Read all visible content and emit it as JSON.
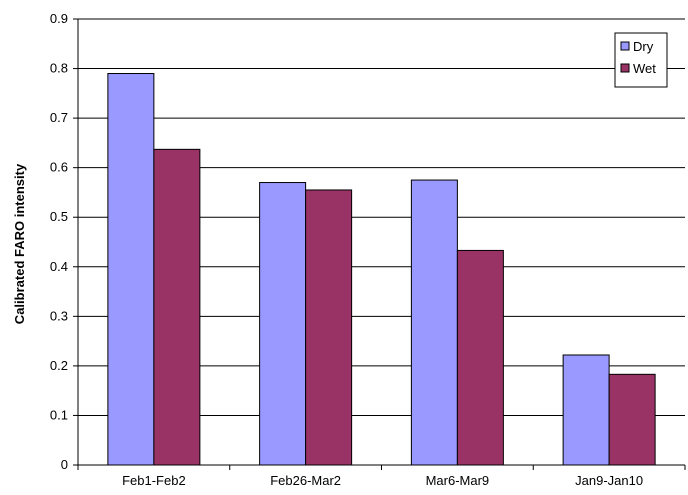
{
  "chart_data": {
    "type": "bar",
    "title": "",
    "xlabel": "",
    "ylabel": "Calibrated FARO intensity",
    "categories": [
      "Feb1-Feb2",
      "Feb26-Mar2",
      "Mar6-Mar9",
      "Jan9-Jan10"
    ],
    "series": [
      {
        "name": "Dry",
        "color": "#9999ff",
        "values": [
          0.79,
          0.57,
          0.575,
          0.222
        ]
      },
      {
        "name": "Wet",
        "color": "#993366",
        "values": [
          0.637,
          0.555,
          0.433,
          0.183
        ]
      }
    ],
    "ylim": [
      0,
      0.9
    ],
    "yticks": [
      "0",
      "0.1",
      "0.2",
      "0.3",
      "0.4",
      "0.5",
      "0.6",
      "0.7",
      "0.8",
      "0.9"
    ],
    "grid": true,
    "legend_position": "top-right"
  }
}
